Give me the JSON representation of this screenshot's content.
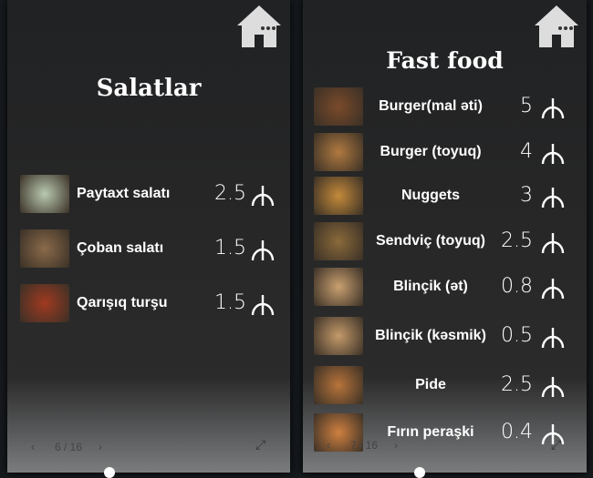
{
  "panels": [
    {
      "title": "Salatlar",
      "page": "6 / 16",
      "items": [
        {
          "name": "Paytaxt salatı",
          "price": "2.5",
          "img": "#b9c9b0"
        },
        {
          "name": "Çoban salatı",
          "price": "1.5",
          "img": "#8a6a4a"
        },
        {
          "name": "Qarışıq turşu",
          "price": "1.5",
          "img": "#a03a20"
        }
      ]
    },
    {
      "title": "Fast food",
      "page": "7 / 16",
      "items": [
        {
          "name": "Burger(mal əti)",
          "price": "5",
          "img": "#7a4a2a"
        },
        {
          "name": "Burger (toyuq)",
          "price": "4",
          "img": "#b07a40"
        },
        {
          "name": "Nuggets",
          "price": "3",
          "img": "#c48a3a"
        },
        {
          "name": "Sendviç (toyuq)",
          "price": "2.5",
          "img": "#8a6a3a"
        },
        {
          "name": "Blinçik (ət)",
          "price": "0.8",
          "img": "#c9a070"
        },
        {
          "name": "Blinçik (kəsmik)",
          "price": "0.5",
          "img": "#c49a6a"
        },
        {
          "name": "Pide",
          "price": "2.5",
          "img": "#b8743a"
        },
        {
          "name": "Fırın peraşki",
          "price": "0.4",
          "img": "#d08040"
        }
      ]
    }
  ],
  "icons": {
    "home": "home-icon",
    "currency": "manat-icon",
    "prev": "chevron-left-icon",
    "next": "chevron-right-icon",
    "expand": "expand-icon"
  }
}
